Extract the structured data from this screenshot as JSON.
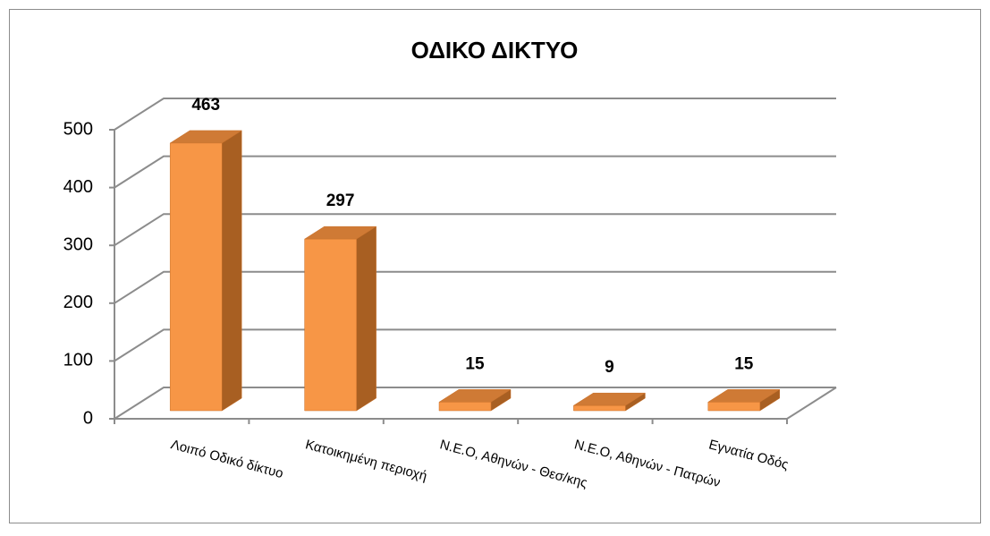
{
  "chart_data": {
    "type": "bar3d",
    "title": "ΟΔΙΚΟ ΔΙΚΤΥΟ",
    "categories": [
      "Λοιπό Οδικό δίκτυο",
      "Κατοικημένη περιοχή",
      "Ν.Ε.Ο, Αθηνών - Θεσ/κης",
      "Ν.Ε.Ο, Αθηνών - Πατρών",
      "Εγνατία Οδός"
    ],
    "values": [
      463,
      297,
      15,
      9,
      15
    ],
    "color": "#f79646",
    "ylim": [
      0,
      500
    ],
    "yticks": [
      0,
      100,
      200,
      300,
      400,
      500
    ],
    "grid": true
  }
}
